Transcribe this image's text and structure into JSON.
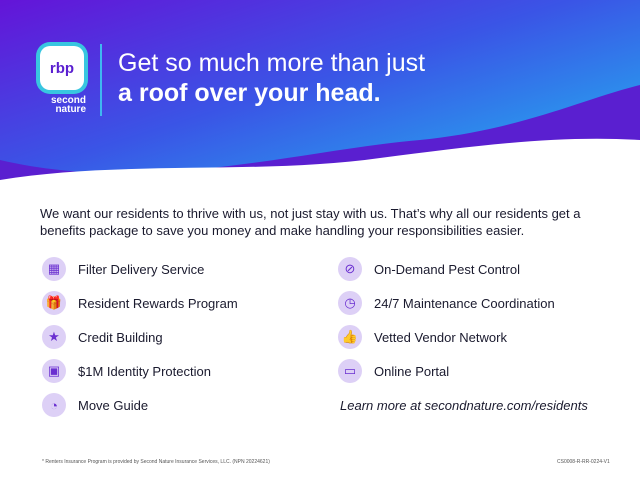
{
  "header": {
    "logo": "rbp",
    "logo_by": "by",
    "logo_brand_line1": "second",
    "logo_brand_line2": "nature",
    "title_line1": "Get so much more than just",
    "title_line2": "a roof over your head."
  },
  "intro": "We want our residents to thrive with us, not just stay with us. That’s why all our residents get a benefits package to save you money and make handling your responsibilities easier.",
  "left_items": [
    {
      "label": "Filter Delivery Service",
      "icon": "filter-icon",
      "glyph": "▦"
    },
    {
      "label": "Resident Rewards Program",
      "icon": "gift-icon",
      "glyph": "🎁"
    },
    {
      "label": "Credit Building",
      "icon": "credit-gauge-icon",
      "glyph": "★"
    },
    {
      "label": "$1M Identity Protection",
      "icon": "id-card-icon",
      "glyph": "▣"
    },
    {
      "label": "Move Guide",
      "icon": "move-guide-icon",
      "glyph": "◔"
    }
  ],
  "right_items": [
    {
      "label": "On-Demand Pest Control",
      "icon": "no-bug-icon",
      "glyph": "⊘"
    },
    {
      "label": "24/7 Maintenance Coordination",
      "icon": "clock-icon",
      "glyph": "◷"
    },
    {
      "label": "Vetted Vendor Network",
      "icon": "thumbs-up-icon",
      "glyph": "👍"
    },
    {
      "label": "Online Portal",
      "icon": "computer-icon",
      "glyph": "▭"
    }
  ],
  "learn_more": "Learn more at secondnature.com/residents",
  "footer": {
    "disclaimer": "* Renters Insurance Program is provided by Second Nature Insurance Services, LLC. (NPN 20224621)",
    "code": "CS0008-R-RR-0224-V1"
  },
  "colors": {
    "purple": "#5a1fd0",
    "blue": "#2f6de8",
    "cyan": "#2cc7f0"
  }
}
